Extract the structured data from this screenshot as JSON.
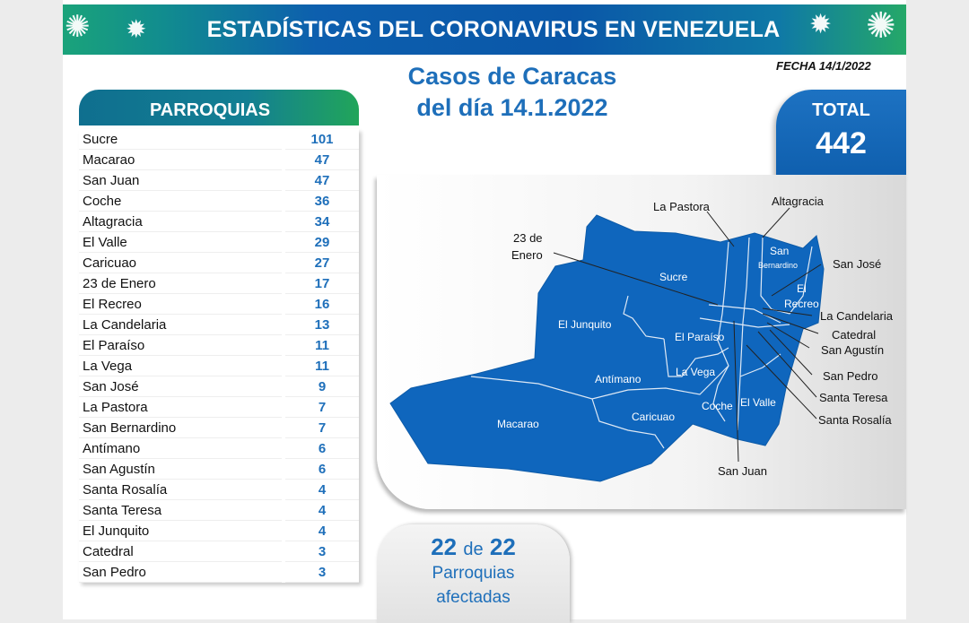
{
  "header": {
    "title": "ESTADÍSTICAS DEL CORONAVIRUS EN VENEZUELA",
    "date": "FECHA 14/1/2022",
    "icon": "virus-icon"
  },
  "subtitle": {
    "line1": "Casos de Caracas",
    "line2": "del día 14.1.2022"
  },
  "table": {
    "header": "PARROQUIAS",
    "rows": [
      {
        "name": "Sucre",
        "value": "101"
      },
      {
        "name": "Macarao",
        "value": "47"
      },
      {
        "name": "San Juan",
        "value": "47"
      },
      {
        "name": "Coche",
        "value": "36"
      },
      {
        "name": "Altagracia",
        "value": "34"
      },
      {
        "name": "El Valle",
        "value": "29"
      },
      {
        "name": "Caricuao",
        "value": "27"
      },
      {
        "name": "23 de Enero",
        "value": "17"
      },
      {
        "name": "El Recreo",
        "value": "16"
      },
      {
        "name": "La Candelaria",
        "value": "13"
      },
      {
        "name": "El Paraíso",
        "value": "11"
      },
      {
        "name": "La Vega",
        "value": "11"
      },
      {
        "name": "San José",
        "value": "9"
      },
      {
        "name": "La Pastora",
        "value": "7"
      },
      {
        "name": "San Bernardino",
        "value": "7"
      },
      {
        "name": "Antímano",
        "value": "6"
      },
      {
        "name": "San Agustín",
        "value": "6"
      },
      {
        "name": "Santa Rosalía",
        "value": "4"
      },
      {
        "name": "Santa Teresa",
        "value": "4"
      },
      {
        "name": "El Junquito",
        "value": "4"
      },
      {
        "name": "Catedral",
        "value": "3"
      },
      {
        "name": "San Pedro",
        "value": "3"
      }
    ]
  },
  "total": {
    "label": "TOTAL",
    "value": "442"
  },
  "affected": {
    "count": "22",
    "of": "de",
    "total": "22",
    "line1": "Parroquias",
    "line2": "afectadas"
  },
  "colors": {
    "map_fill": "#0f66bd",
    "accent": "#1e6fba",
    "green": "#21a55a"
  },
  "map": {
    "labels": [
      "Sucre",
      "El Junquito",
      "El Paraíso",
      "La Vega",
      "Antímano",
      "Macarao",
      "Caricuao",
      "Coche",
      "El Valle",
      "San",
      "Bernardino",
      "El",
      "Recreo",
      "La Pastora",
      "Altagracia",
      "23 de",
      "Enero",
      "San José",
      "La Candelaria",
      "Catedral",
      "San Agustín",
      "San Pedro",
      "Santa Teresa",
      "Santa Rosalía",
      "San Juan"
    ]
  }
}
